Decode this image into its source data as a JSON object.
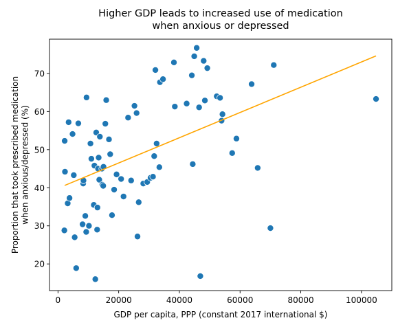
{
  "chart_data": {
    "type": "scatter",
    "title": "Higher GDP leads to increased use of medication\nwhen anxious or depressed",
    "xlabel": "GDP per capita, PPP (constant 2017 international $)",
    "ylabel": "Proportion that took prescribed medication\nwhen anxious/depressed (%)",
    "xlim": [
      -2800,
      110000
    ],
    "ylim": [
      13,
      79
    ],
    "xticks": [
      0,
      20000,
      40000,
      60000,
      80000,
      100000
    ],
    "yticks": [
      20,
      30,
      40,
      50,
      60,
      70
    ],
    "grid": false,
    "point_color": "#1f77b4",
    "trendline_color": "#ffa500",
    "trendline": {
      "x": [
        2200,
        104800
      ],
      "y": [
        40.6,
        74.6
      ]
    },
    "points": [
      {
        "x": 2100,
        "y": 28.8
      },
      {
        "x": 2200,
        "y": 52.3
      },
      {
        "x": 2300,
        "y": 44.2
      },
      {
        "x": 3200,
        "y": 35.9
      },
      {
        "x": 3500,
        "y": 57.2
      },
      {
        "x": 3800,
        "y": 37.3
      },
      {
        "x": 4800,
        "y": 54.1
      },
      {
        "x": 5200,
        "y": 43.3
      },
      {
        "x": 5500,
        "y": 27.0
      },
      {
        "x": 6000,
        "y": 18.9
      },
      {
        "x": 6700,
        "y": 56.9
      },
      {
        "x": 8100,
        "y": 30.4
      },
      {
        "x": 8300,
        "y": 41.1
      },
      {
        "x": 8400,
        "y": 41.9
      },
      {
        "x": 9000,
        "y": 32.6
      },
      {
        "x": 9300,
        "y": 28.4
      },
      {
        "x": 9400,
        "y": 63.7
      },
      {
        "x": 10200,
        "y": 30.0
      },
      {
        "x": 10700,
        "y": 51.6
      },
      {
        "x": 11000,
        "y": 47.6
      },
      {
        "x": 11800,
        "y": 35.5
      },
      {
        "x": 12000,
        "y": 45.8
      },
      {
        "x": 12300,
        "y": 16.0
      },
      {
        "x": 12600,
        "y": 54.5
      },
      {
        "x": 12900,
        "y": 29.0
      },
      {
        "x": 13000,
        "y": 34.8
      },
      {
        "x": 13200,
        "y": 45.0
      },
      {
        "x": 13400,
        "y": 47.9
      },
      {
        "x": 13600,
        "y": 42.1
      },
      {
        "x": 13800,
        "y": 53.4
      },
      {
        "x": 14500,
        "y": 45.0
      },
      {
        "x": 14600,
        "y": 40.8
      },
      {
        "x": 14900,
        "y": 40.5
      },
      {
        "x": 15000,
        "y": 45.5
      },
      {
        "x": 15600,
        "y": 56.8
      },
      {
        "x": 15900,
        "y": 63.0
      },
      {
        "x": 16800,
        "y": 52.7
      },
      {
        "x": 17200,
        "y": 48.8
      },
      {
        "x": 17800,
        "y": 32.8
      },
      {
        "x": 18500,
        "y": 39.5
      },
      {
        "x": 19300,
        "y": 43.5
      },
      {
        "x": 20800,
        "y": 42.3
      },
      {
        "x": 21600,
        "y": 37.7
      },
      {
        "x": 23100,
        "y": 58.4
      },
      {
        "x": 24100,
        "y": 41.9
      },
      {
        "x": 25200,
        "y": 61.5
      },
      {
        "x": 25900,
        "y": 59.6
      },
      {
        "x": 26200,
        "y": 27.2
      },
      {
        "x": 26600,
        "y": 36.2
      },
      {
        "x": 28100,
        "y": 41.1
      },
      {
        "x": 29400,
        "y": 41.5
      },
      {
        "x": 30500,
        "y": 42.6
      },
      {
        "x": 31300,
        "y": 42.9
      },
      {
        "x": 31700,
        "y": 48.3
      },
      {
        "x": 32100,
        "y": 70.9
      },
      {
        "x": 32500,
        "y": 51.6
      },
      {
        "x": 33400,
        "y": 45.4
      },
      {
        "x": 33600,
        "y": 67.7
      },
      {
        "x": 34600,
        "y": 68.5
      },
      {
        "x": 38200,
        "y": 72.9
      },
      {
        "x": 38500,
        "y": 61.3
      },
      {
        "x": 42400,
        "y": 62.1
      },
      {
        "x": 44100,
        "y": 69.5
      },
      {
        "x": 44400,
        "y": 46.2
      },
      {
        "x": 44900,
        "y": 74.5
      },
      {
        "x": 45700,
        "y": 76.7
      },
      {
        "x": 46500,
        "y": 61.1
      },
      {
        "x": 46900,
        "y": 16.8
      },
      {
        "x": 48000,
        "y": 73.3
      },
      {
        "x": 48400,
        "y": 62.9
      },
      {
        "x": 49200,
        "y": 71.4
      },
      {
        "x": 52300,
        "y": 64.0
      },
      {
        "x": 53400,
        "y": 63.6
      },
      {
        "x": 53900,
        "y": 57.6
      },
      {
        "x": 54200,
        "y": 59.3
      },
      {
        "x": 57400,
        "y": 49.1
      },
      {
        "x": 58800,
        "y": 52.9
      },
      {
        "x": 63800,
        "y": 67.2
      },
      {
        "x": 65800,
        "y": 45.2
      },
      {
        "x": 70000,
        "y": 29.4
      },
      {
        "x": 71100,
        "y": 72.2
      },
      {
        "x": 104800,
        "y": 63.3
      }
    ]
  }
}
